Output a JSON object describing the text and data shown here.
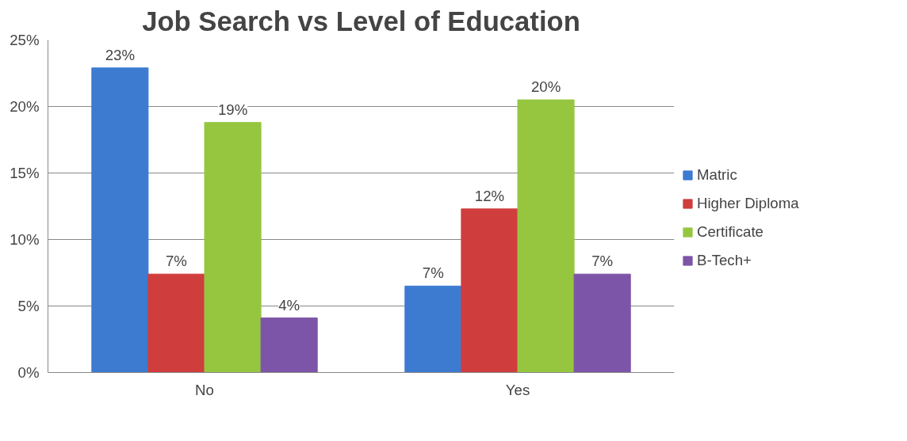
{
  "chart_data": {
    "type": "bar",
    "title": "Job Search vs Level of Education",
    "categories": [
      "No",
      "Yes"
    ],
    "series": [
      {
        "name": "Matric",
        "color": "#3c7bd0",
        "values": [
          22.9,
          6.5
        ],
        "value_labels": [
          "23%",
          "7%"
        ]
      },
      {
        "name": "Higher Diploma",
        "color": "#d03d3d",
        "values": [
          7.4,
          12.3
        ],
        "value_labels": [
          "7%",
          "12%"
        ]
      },
      {
        "name": "Certificate",
        "color": "#96c640",
        "values": [
          18.8,
          20.5
        ],
        "value_labels": [
          "19%",
          "20%"
        ]
      },
      {
        "name": "B-Tech+",
        "color": "#7d55a8",
        "values": [
          4.1,
          7.4
        ],
        "value_labels": [
          "4%",
          "7%"
        ]
      }
    ],
    "ylim": [
      0,
      25
    ],
    "yticks": [
      {
        "value": 0,
        "label": "0%"
      },
      {
        "value": 5,
        "label": "5%"
      },
      {
        "value": 10,
        "label": "10%"
      },
      {
        "value": 15,
        "label": "15%"
      },
      {
        "value": 20,
        "label": "20%"
      },
      {
        "value": 25,
        "label": "25%"
      }
    ],
    "grid": "y",
    "legend": "right"
  }
}
